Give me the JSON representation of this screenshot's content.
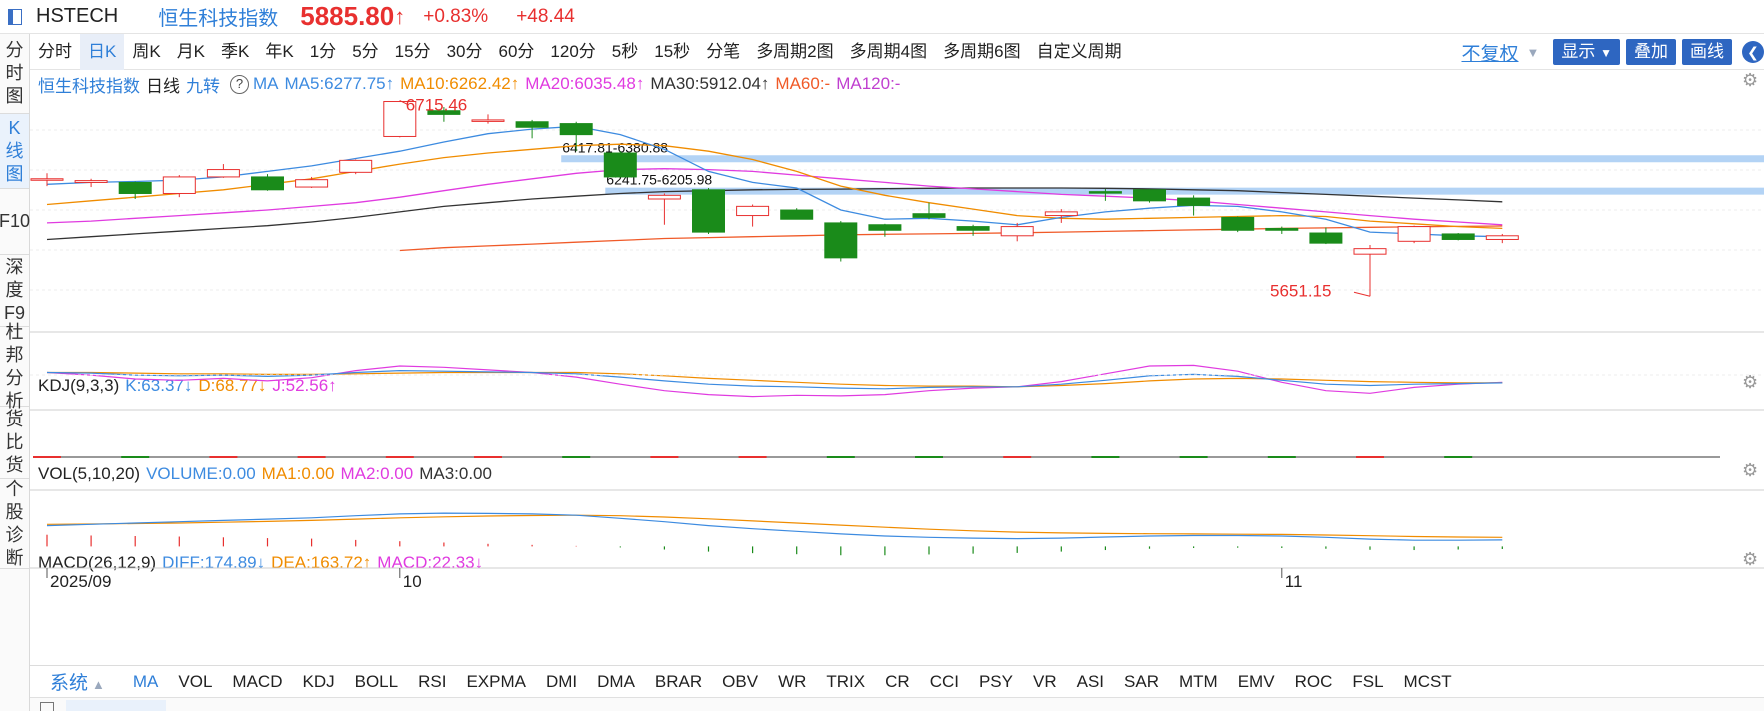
{
  "title_bar": {
    "code": "HSTECH",
    "name": "恒生科技指数",
    "price": "5885.80",
    "arrow": "↑",
    "change_pct": "+0.83%",
    "change_abs": "+48.44",
    "color_up": "#e8302f",
    "color_down": "#1a8b1a"
  },
  "sidebar": {
    "items": [
      {
        "label": "分时图",
        "active": false
      },
      {
        "label": "K线图",
        "active": true
      },
      {
        "label": "F10",
        "active": false
      },
      {
        "label": "深度F9",
        "active": false
      },
      {
        "label": "杜邦分析",
        "active": false
      },
      {
        "label": "货比货",
        "active": false
      },
      {
        "label": "个股诊断",
        "active": false
      }
    ]
  },
  "period_bar": {
    "items": [
      "分时",
      "日K",
      "周K",
      "月K",
      "季K",
      "年K",
      "1分",
      "5分",
      "15分",
      "30分",
      "60分",
      "120分",
      "5秒",
      "15秒",
      "分笔",
      "多周期2图",
      "多周期4图",
      "多周期6图",
      "自定义周期"
    ],
    "active_index": 1,
    "fuquan": "不复权",
    "display_btn": "显示",
    "overlay_btn": "叠加",
    "draw_btn": "画线"
  },
  "main_legend": {
    "name": "恒生科技指数",
    "period": "日线",
    "jiuzhuan": "九转",
    "help": "?",
    "ma_label": "MA",
    "ma5": "MA5:6277.75↑",
    "ma10": "MA10:6262.42↑",
    "ma20": "MA20:6035.48↑",
    "ma30": "MA30:5912.04↑",
    "ma60": "MA60:-",
    "ma120": "MA120:-",
    "colors": {
      "ma5": "#3d8be0",
      "ma10": "#f08c00",
      "ma20": "#e03be0",
      "ma30": "#333333",
      "ma60": "#f05a28",
      "ma120": "#c040d0"
    }
  },
  "kdj_legend": {
    "name": "KDJ(9,3,3)",
    "k": "K:63.37↓",
    "d": "D:68.77↓",
    "j": "J:52.56↑"
  },
  "vol_legend": {
    "name": "VOL(5,10,20)",
    "volume": "VOLUME:0.00",
    "ma1": "MA1:0.00",
    "ma2": "MA2:0.00",
    "ma3": "MA3:0.00"
  },
  "macd_legend": {
    "name": "MACD(26,12,9)",
    "diff": "DIFF:174.89↓",
    "dea": "DEA:163.72↑",
    "macd": "MACD:22.33↓"
  },
  "chart_data": {
    "type": "candlestick",
    "x_labels": [
      {
        "label": "2025/09",
        "index": 0
      },
      {
        "label": "10",
        "index": 8
      },
      {
        "label": "11",
        "index": 28
      }
    ],
    "candles": [
      {
        "o": 6290,
        "c": 6290,
        "h": 6320,
        "l": 6250
      },
      {
        "o": 6270,
        "c": 6280,
        "h": 6290,
        "l": 6245
      },
      {
        "o": 6270,
        "c": 6210,
        "h": 6275,
        "l": 6180
      },
      {
        "o": 6210,
        "c": 6300,
        "h": 6310,
        "l": 6190
      },
      {
        "o": 6300,
        "c": 6340,
        "h": 6370,
        "l": 6295
      },
      {
        "o": 6300,
        "c": 6230,
        "h": 6315,
        "l": 6225
      },
      {
        "o": 6245,
        "c": 6285,
        "h": 6300,
        "l": 6240
      },
      {
        "o": 6325,
        "c": 6390,
        "h": 6395,
        "l": 6315
      },
      {
        "o": 6520,
        "c": 6710,
        "h": 6715.46,
        "l": 6515
      },
      {
        "o": 6660,
        "c": 6640,
        "h": 6680,
        "l": 6600
      },
      {
        "o": 6610,
        "c": 6610,
        "h": 6640,
        "l": 6590
      },
      {
        "o": 6600,
        "c": 6570,
        "h": 6610,
        "l": 6510
      },
      {
        "o": 6590,
        "c": 6530,
        "h": 6600,
        "l": 6440
      },
      {
        "o": 6430,
        "c": 6300,
        "h": 6440,
        "l": 6300
      },
      {
        "o": 6180,
        "c": 6200,
        "h": 6210,
        "l": 6040
      },
      {
        "o": 6230,
        "c": 6000,
        "h": 6240,
        "l": 5990
      },
      {
        "o": 6090,
        "c": 6140,
        "h": 6150,
        "l": 6030
      },
      {
        "o": 6120,
        "c": 6070,
        "h": 6130,
        "l": 6070
      },
      {
        "o": 6050,
        "c": 5860,
        "h": 6060,
        "l": 5840
      },
      {
        "o": 6040,
        "c": 6010,
        "h": 6045,
        "l": 5975
      },
      {
        "o": 6100,
        "c": 6080,
        "h": 6160,
        "l": 6070
      },
      {
        "o": 6030,
        "c": 6010,
        "h": 6040,
        "l": 5980
      },
      {
        "o": 5980,
        "c": 6030,
        "h": 6050,
        "l": 5950
      },
      {
        "o": 6090,
        "c": 6110,
        "h": 6125,
        "l": 6050
      },
      {
        "o": 6220,
        "c": 6215,
        "h": 6235,
        "l": 6170
      },
      {
        "o": 6230,
        "c": 6170,
        "h": 6232,
        "l": 6160
      },
      {
        "o": 6185,
        "c": 6145,
        "h": 6200,
        "l": 6090
      },
      {
        "o": 6080,
        "c": 6010,
        "h": 6085,
        "l": 6000
      },
      {
        "o": 6020,
        "c": 6010,
        "h": 6030,
        "l": 5990
      },
      {
        "o": 5995,
        "c": 5940,
        "h": 6025,
        "l": 5935
      },
      {
        "o": 5880,
        "c": 5910,
        "h": 5930,
        "l": 5651.15
      },
      {
        "o": 5950,
        "c": 6030,
        "h": 6035,
        "l": 5940
      },
      {
        "o": 5990,
        "c": 5960,
        "h": 5995,
        "l": 5955
      },
      {
        "o": 5960,
        "c": 5980,
        "h": 5990,
        "l": 5940
      }
    ],
    "ma5": [
      6260,
      6270,
      6275,
      6283,
      6300,
      6330,
      6360,
      6400,
      6440,
      6490,
      6535,
      6560,
      6575,
      6530,
      6450,
      6330,
      6270,
      6240,
      6120,
      6070,
      6075,
      6060,
      6040,
      6080,
      6110,
      6130,
      6145,
      6140,
      6110,
      6070,
      6000,
      5990,
      5980,
      5975
    ],
    "ma10": [
      6150,
      6170,
      6190,
      6210,
      6230,
      6260,
      6290,
      6330,
      6370,
      6405,
      6430,
      6450,
      6470,
      6478,
      6470,
      6440,
      6395,
      6330,
      6250,
      6200,
      6160,
      6125,
      6090,
      6075,
      6070,
      6075,
      6080,
      6085,
      6090,
      6085,
      6060,
      6045,
      6030,
      6020
    ],
    "ma20": [
      6050,
      6060,
      6075,
      6090,
      6105,
      6120,
      6140,
      6160,
      6190,
      6225,
      6260,
      6290,
      6320,
      6340,
      6345,
      6340,
      6330,
      6310,
      6290,
      6270,
      6250,
      6235,
      6220,
      6205,
      6195,
      6185,
      6170,
      6150,
      6130,
      6110,
      6090,
      6070,
      6055,
      6040
    ],
    "ma30": [
      5960,
      5975,
      5990,
      6005,
      6020,
      6035,
      6055,
      6080,
      6110,
      6140,
      6160,
      6180,
      6195,
      6210,
      6220,
      6225,
      6230,
      6232,
      6234,
      6236,
      6238,
      6240,
      6240,
      6240,
      6238,
      6235,
      6230,
      6225,
      6215,
      6205,
      6195,
      6185,
      6175,
      6165
    ],
    "ma60": [
      null,
      null,
      null,
      null,
      null,
      null,
      null,
      null,
      5900,
      5915,
      5925,
      5935,
      5945,
      5955,
      5965,
      5970,
      5975,
      5980,
      5985,
      5988,
      5990,
      5993,
      5996,
      6000,
      6004,
      6008,
      6012,
      6016,
      6020,
      6023,
      6026,
      6029,
      6031,
      6033
    ],
    "ylim": [
      5620,
      6740
    ],
    "price_labels": [
      {
        "text": "6715.46",
        "index": 8,
        "value": 6715.46
      },
      {
        "text": "5651.15",
        "index": 30,
        "value": 5651.15
      }
    ],
    "zones": [
      {
        "label": "6417.81-6380.88",
        "hi": 6417.81,
        "lo": 6380.88,
        "start_index": 12
      },
      {
        "label": "6241.75-6205.98",
        "hi": 6241.75,
        "lo": 6205.98,
        "start_index": 13
      }
    ],
    "kdj": {
      "k": [
        70,
        69,
        66,
        65,
        66,
        64,
        66,
        70,
        73,
        72,
        71,
        70,
        68,
        63,
        57,
        52,
        49,
        48,
        46,
        45,
        47,
        48,
        48,
        52,
        58,
        65,
        67,
        64,
        58,
        52,
        50,
        52,
        53,
        54
      ],
      "d": [
        70,
        70,
        69,
        68,
        68,
        67,
        67,
        68,
        69,
        70,
        70,
        70,
        70,
        68,
        65,
        61,
        58,
        55,
        52,
        50,
        49,
        49,
        48,
        50,
        53,
        57,
        60,
        61,
        60,
        58,
        56,
        55,
        54,
        54
      ],
      "j": [
        70,
        66,
        60,
        58,
        61,
        57,
        62,
        73,
        80,
        78,
        74,
        70,
        63,
        52,
        42,
        36,
        33,
        35,
        34,
        36,
        42,
        46,
        48,
        56,
        68,
        80,
        81,
        72,
        55,
        42,
        38,
        47,
        52,
        55
      ],
      "ylim": [
        20,
        100
      ]
    },
    "macd": {
      "diff": [
        80,
        85,
        90,
        95,
        100,
        105,
        110,
        118,
        125,
        128,
        127,
        125,
        120,
        108,
        95,
        80,
        68,
        58,
        48,
        40,
        35,
        32,
        30,
        32,
        36,
        40,
        42,
        42,
        40,
        35,
        28,
        24,
        24,
        25
      ],
      "dea": [
        85,
        86,
        88,
        90,
        93,
        96,
        100,
        105,
        110,
        114,
        117,
        119,
        120,
        118,
        113,
        106,
        98,
        90,
        82,
        74,
        66,
        60,
        55,
        52,
        50,
        49,
        48,
        47,
        46,
        44,
        41,
        38,
        36,
        35
      ],
      "hist": [
        45,
        42,
        40,
        38,
        35,
        32,
        30,
        25,
        20,
        15,
        10,
        6,
        2,
        -4,
        -12,
        -20,
        -26,
        -30,
        -34,
        -34,
        -31,
        -28,
        -25,
        -20,
        -14,
        -9,
        -6,
        -5,
        -6,
        -9,
        -13,
        -14,
        -12,
        -10
      ],
      "ylim": [
        -60,
        140
      ]
    }
  },
  "indicator_bar": {
    "system": "系统",
    "items": [
      "MA",
      "VOL",
      "MACD",
      "KDJ",
      "BOLL",
      "RSI",
      "EXPMA",
      "DMI",
      "DMA",
      "BRAR",
      "OBV",
      "WR",
      "TRIX",
      "CR",
      "CCI",
      "PSY",
      "VR",
      "ASI",
      "SAR",
      "MTM",
      "EMV",
      "ROC",
      "FSL",
      "MCST"
    ],
    "active_index": 0
  },
  "icons": {
    "gear": "gear-icon",
    "help": "help-icon",
    "window": "window-icon",
    "caret": "caret-down-icon"
  }
}
